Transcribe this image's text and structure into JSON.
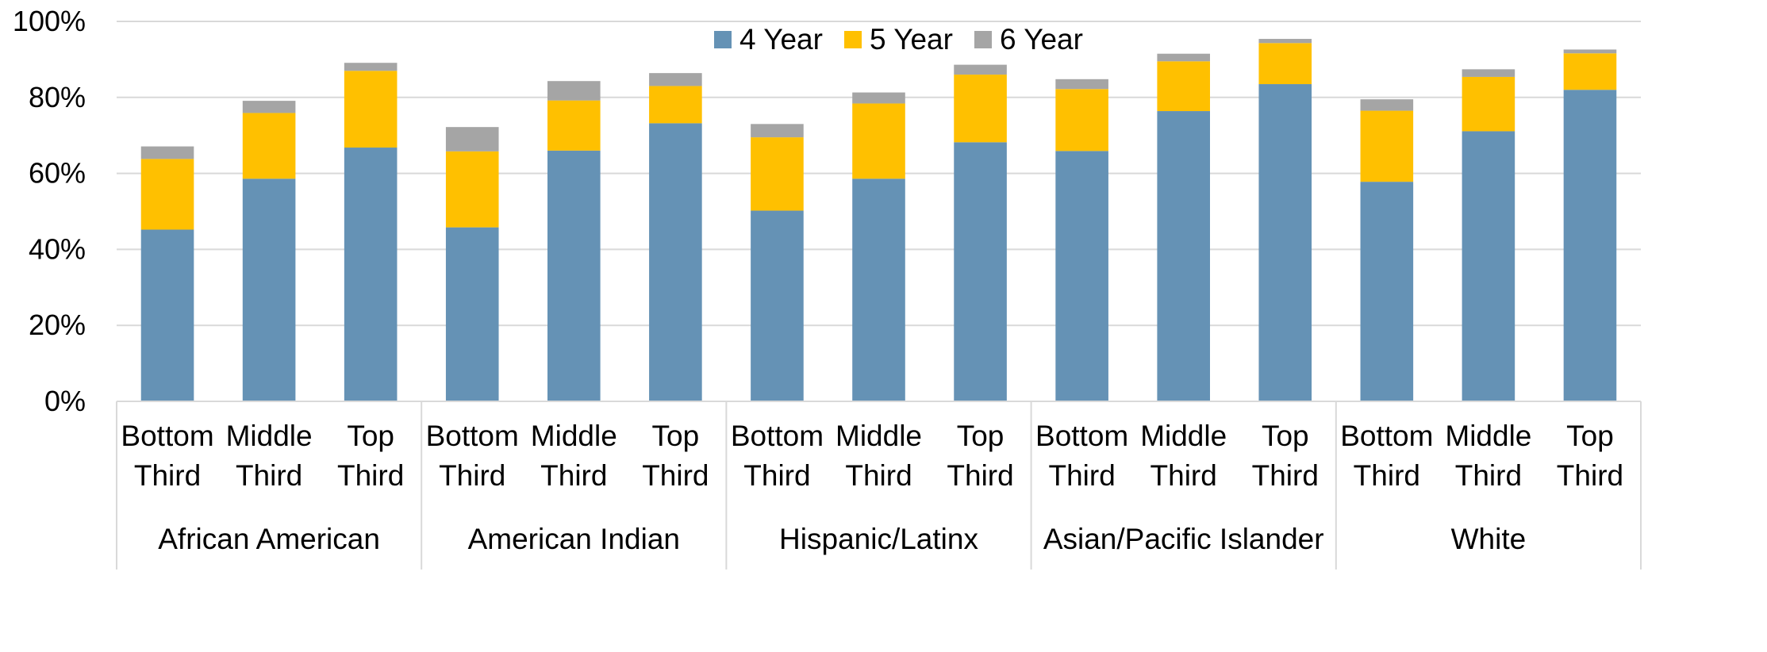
{
  "chart_data": {
    "type": "bar",
    "stacked": true,
    "ylim": [
      0,
      100
    ],
    "ytick_values": [
      0,
      20,
      40,
      60,
      80,
      100
    ],
    "ytick_labels": [
      "0%",
      "20%",
      "40%",
      "60%",
      "80%",
      "100%"
    ],
    "grid": true,
    "legend_position": "top",
    "groups": [
      {
        "name": "African American",
        "categories": [
          [
            "Bottom",
            "Third"
          ],
          [
            "Middle",
            "Third"
          ],
          [
            "Top",
            "Third"
          ]
        ]
      },
      {
        "name": "American Indian",
        "categories": [
          [
            "Bottom",
            "Third"
          ],
          [
            "Middle",
            "Third"
          ],
          [
            "Top",
            "Third"
          ]
        ]
      },
      {
        "name": "Hispanic/Latinx",
        "categories": [
          [
            "Bottom",
            "Third"
          ],
          [
            "Middle",
            "Third"
          ],
          [
            "Top",
            "Third"
          ]
        ]
      },
      {
        "name": "Asian/Pacific Islander",
        "categories": [
          [
            "Bottom",
            "Third"
          ],
          [
            "Middle",
            "Third"
          ],
          [
            "Top",
            "Third"
          ]
        ]
      },
      {
        "name": "White",
        "categories": [
          [
            "Bottom",
            "Third"
          ],
          [
            "Middle",
            "Third"
          ],
          [
            "Top",
            "Third"
          ]
        ]
      }
    ],
    "series": [
      {
        "name": "4 Year",
        "color": "#6592b5",
        "values": [
          45.2,
          58.6,
          66.8,
          45.8,
          66.0,
          73.2,
          50.2,
          58.6,
          68.2,
          65.9,
          76.4,
          83.5,
          57.8,
          71.1,
          82.0
        ]
      },
      {
        "name": "5 Year",
        "color": "#ffc000",
        "values": [
          18.6,
          17.3,
          20.2,
          20.0,
          13.2,
          9.8,
          19.3,
          19.8,
          17.8,
          16.3,
          13.1,
          10.8,
          18.7,
          14.3,
          9.6
        ]
      },
      {
        "name": "6 Year",
        "color": "#a5a5a5",
        "values": [
          3.3,
          3.2,
          2.1,
          6.4,
          5.1,
          3.4,
          3.5,
          2.9,
          2.6,
          2.6,
          2.0,
          1.1,
          3.0,
          2.0,
          1.0
        ]
      }
    ]
  }
}
